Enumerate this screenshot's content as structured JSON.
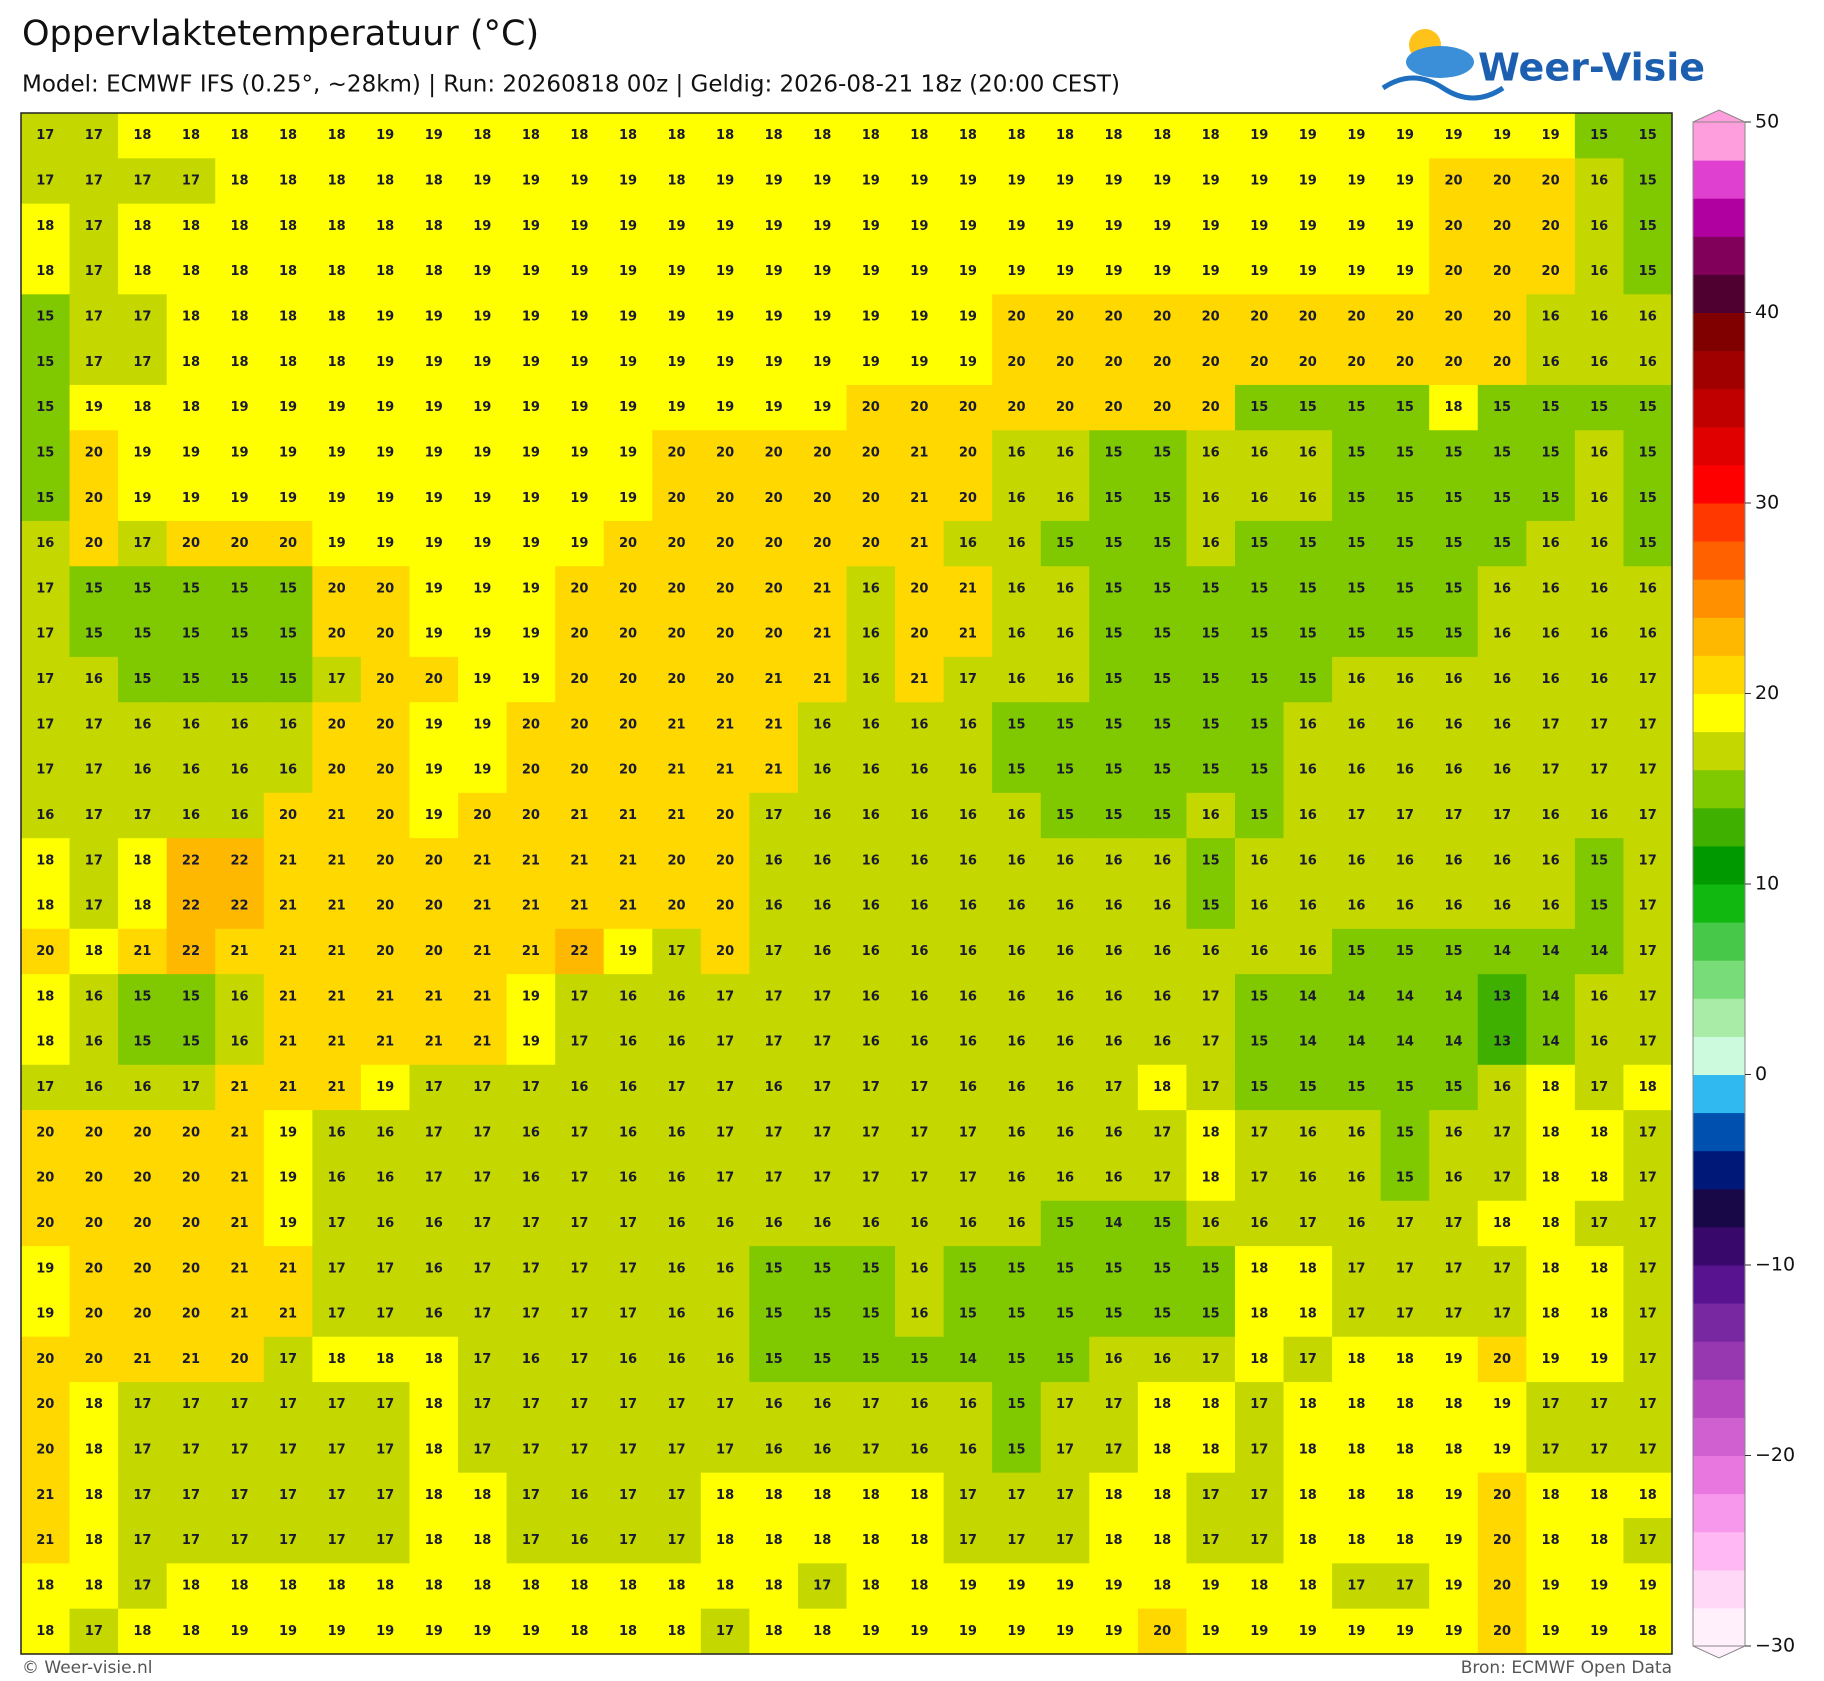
{
  "header": {
    "title": "Oppervlaktetemperatuur (°C)",
    "subtitle": "Model: ECMWF IFS (0.25°, ~28km)  |  Run: 20260818 00z  |  Geldig: 2026-08-21 18z (20:00 CEST)",
    "logo": "Weer-Visie"
  },
  "footer": {
    "credit": "© Weer-visie.nl",
    "source": "Bron: ECMWF Open Data"
  },
  "map": {
    "values": [
      [
        17,
        17,
        18,
        18,
        18,
        18,
        18,
        19,
        19,
        18,
        18,
        18,
        18,
        18,
        18,
        18,
        18,
        18,
        18,
        18,
        18,
        18,
        18,
        18,
        18,
        19,
        19,
        19,
        19,
        19,
        19,
        19,
        15,
        15
      ],
      [
        17,
        17,
        17,
        17,
        18,
        18,
        18,
        18,
        18,
        19,
        19,
        19,
        19,
        18,
        19,
        19,
        19,
        19,
        19,
        19,
        19,
        19,
        19,
        19,
        19,
        19,
        19,
        19,
        19,
        20,
        20,
        20,
        16,
        15
      ],
      [
        18,
        17,
        18,
        18,
        18,
        18,
        18,
        18,
        18,
        19,
        19,
        19,
        19,
        19,
        19,
        19,
        19,
        19,
        19,
        19,
        19,
        19,
        19,
        19,
        19,
        19,
        19,
        19,
        19,
        20,
        20,
        20,
        16,
        15
      ],
      [
        18,
        17,
        18,
        18,
        18,
        18,
        18,
        18,
        18,
        19,
        19,
        19,
        19,
        19,
        19,
        19,
        19,
        19,
        19,
        19,
        19,
        19,
        19,
        19,
        19,
        19,
        19,
        19,
        19,
        20,
        20,
        20,
        16,
        15
      ],
      [
        15,
        17,
        17,
        18,
        18,
        18,
        18,
        19,
        19,
        19,
        19,
        19,
        19,
        19,
        19,
        19,
        19,
        19,
        19,
        19,
        20,
        20,
        20,
        20,
        20,
        20,
        20,
        20,
        20,
        20,
        20,
        16,
        16,
        16
      ],
      [
        15,
        17,
        17,
        18,
        18,
        18,
        18,
        19,
        19,
        19,
        19,
        19,
        19,
        19,
        19,
        19,
        19,
        19,
        19,
        19,
        20,
        20,
        20,
        20,
        20,
        20,
        20,
        20,
        20,
        20,
        20,
        16,
        16,
        16
      ],
      [
        15,
        19,
        18,
        18,
        19,
        19,
        19,
        19,
        19,
        19,
        19,
        19,
        19,
        19,
        19,
        19,
        19,
        20,
        20,
        20,
        20,
        20,
        20,
        20,
        20,
        15,
        15,
        15,
        15,
        18,
        15,
        15,
        15,
        15
      ],
      [
        15,
        20,
        19,
        19,
        19,
        19,
        19,
        19,
        19,
        19,
        19,
        19,
        19,
        20,
        20,
        20,
        20,
        20,
        21,
        20,
        16,
        16,
        15,
        15,
        16,
        16,
        16,
        15,
        15,
        15,
        15,
        15,
        16,
        15
      ],
      [
        15,
        20,
        19,
        19,
        19,
        19,
        19,
        19,
        19,
        19,
        19,
        19,
        19,
        20,
        20,
        20,
        20,
        20,
        21,
        20,
        16,
        16,
        15,
        15,
        16,
        16,
        16,
        15,
        15,
        15,
        15,
        15,
        16,
        15
      ],
      [
        16,
        20,
        17,
        20,
        20,
        20,
        19,
        19,
        19,
        19,
        19,
        19,
        20,
        20,
        20,
        20,
        20,
        20,
        21,
        16,
        16,
        15,
        15,
        15,
        16,
        15,
        15,
        15,
        15,
        15,
        15,
        16,
        16,
        15
      ],
      [
        17,
        15,
        15,
        15,
        15,
        15,
        20,
        20,
        19,
        19,
        19,
        20,
        20,
        20,
        20,
        20,
        21,
        16,
        20,
        21,
        16,
        16,
        15,
        15,
        15,
        15,
        15,
        15,
        15,
        15,
        16,
        16,
        16,
        16
      ],
      [
        17,
        15,
        15,
        15,
        15,
        15,
        20,
        20,
        19,
        19,
        19,
        20,
        20,
        20,
        20,
        20,
        21,
        16,
        20,
        21,
        16,
        16,
        15,
        15,
        15,
        15,
        15,
        15,
        15,
        15,
        16,
        16,
        16,
        16
      ],
      [
        17,
        16,
        15,
        15,
        15,
        15,
        17,
        20,
        20,
        19,
        19,
        20,
        20,
        20,
        20,
        21,
        21,
        16,
        21,
        17,
        16,
        16,
        15,
        15,
        15,
        15,
        15,
        16,
        16,
        16,
        16,
        16,
        16,
        17
      ],
      [
        17,
        17,
        16,
        16,
        16,
        16,
        20,
        20,
        19,
        19,
        20,
        20,
        20,
        21,
        21,
        21,
        16,
        16,
        16,
        16,
        15,
        15,
        15,
        15,
        15,
        15,
        16,
        16,
        16,
        16,
        16,
        17,
        17,
        17
      ],
      [
        17,
        17,
        16,
        16,
        16,
        16,
        20,
        20,
        19,
        19,
        20,
        20,
        20,
        21,
        21,
        21,
        16,
        16,
        16,
        16,
        15,
        15,
        15,
        15,
        15,
        15,
        16,
        16,
        16,
        16,
        16,
        17,
        17,
        17
      ],
      [
        16,
        17,
        17,
        16,
        16,
        20,
        21,
        20,
        19,
        20,
        20,
        21,
        21,
        21,
        20,
        17,
        16,
        16,
        16,
        16,
        16,
        15,
        15,
        15,
        16,
        15,
        16,
        17,
        17,
        17,
        17,
        16,
        16,
        17
      ],
      [
        18,
        17,
        18,
        22,
        22,
        21,
        21,
        20,
        20,
        21,
        21,
        21,
        21,
        20,
        20,
        16,
        16,
        16,
        16,
        16,
        16,
        16,
        16,
        16,
        15,
        16,
        16,
        16,
        16,
        16,
        16,
        16,
        15,
        17
      ],
      [
        18,
        17,
        18,
        22,
        22,
        21,
        21,
        20,
        20,
        21,
        21,
        21,
        21,
        20,
        20,
        16,
        16,
        16,
        16,
        16,
        16,
        16,
        16,
        16,
        15,
        16,
        16,
        16,
        16,
        16,
        16,
        16,
        15,
        17
      ],
      [
        20,
        18,
        21,
        22,
        21,
        21,
        21,
        20,
        20,
        21,
        21,
        22,
        19,
        17,
        20,
        17,
        16,
        16,
        16,
        16,
        16,
        16,
        16,
        16,
        16,
        16,
        16,
        15,
        15,
        15,
        14,
        14,
        14,
        17
      ],
      [
        18,
        16,
        15,
        15,
        16,
        21,
        21,
        21,
        21,
        21,
        19,
        17,
        16,
        16,
        17,
        17,
        17,
        16,
        16,
        16,
        16,
        16,
        16,
        16,
        17,
        15,
        14,
        14,
        14,
        14,
        13,
        14,
        16,
        17
      ],
      [
        18,
        16,
        15,
        15,
        16,
        21,
        21,
        21,
        21,
        21,
        19,
        17,
        16,
        16,
        17,
        17,
        17,
        16,
        16,
        16,
        16,
        16,
        16,
        16,
        17,
        15,
        14,
        14,
        14,
        14,
        13,
        14,
        16,
        17
      ],
      [
        17,
        16,
        16,
        17,
        21,
        21,
        21,
        19,
        17,
        17,
        17,
        16,
        16,
        17,
        17,
        16,
        17,
        17,
        17,
        16,
        16,
        16,
        17,
        18,
        17,
        15,
        15,
        15,
        15,
        15,
        16,
        18,
        17,
        18
      ],
      [
        20,
        20,
        20,
        20,
        21,
        19,
        16,
        16,
        17,
        17,
        16,
        17,
        16,
        16,
        17,
        17,
        17,
        17,
        17,
        17,
        16,
        16,
        16,
        17,
        18,
        17,
        16,
        16,
        15,
        16,
        17,
        18,
        18,
        17
      ],
      [
        20,
        20,
        20,
        20,
        21,
        19,
        16,
        16,
        17,
        17,
        16,
        17,
        16,
        16,
        17,
        17,
        17,
        17,
        17,
        17,
        16,
        16,
        16,
        17,
        18,
        17,
        16,
        16,
        15,
        16,
        17,
        18,
        18,
        17
      ],
      [
        20,
        20,
        20,
        20,
        21,
        19,
        17,
        16,
        16,
        17,
        17,
        17,
        17,
        16,
        16,
        16,
        16,
        16,
        16,
        16,
        16,
        15,
        14,
        15,
        16,
        16,
        17,
        16,
        17,
        17,
        18,
        18,
        17,
        17
      ],
      [
        19,
        20,
        20,
        20,
        21,
        21,
        17,
        17,
        16,
        17,
        17,
        17,
        17,
        16,
        16,
        15,
        15,
        15,
        16,
        15,
        15,
        15,
        15,
        15,
        15,
        18,
        18,
        17,
        17,
        17,
        17,
        18,
        18,
        17
      ],
      [
        19,
        20,
        20,
        20,
        21,
        21,
        17,
        17,
        16,
        17,
        17,
        17,
        17,
        16,
        16,
        15,
        15,
        15,
        16,
        15,
        15,
        15,
        15,
        15,
        15,
        18,
        18,
        17,
        17,
        17,
        17,
        18,
        18,
        17
      ],
      [
        20,
        20,
        21,
        21,
        20,
        17,
        18,
        18,
        18,
        17,
        16,
        17,
        16,
        16,
        16,
        15,
        15,
        15,
        15,
        14,
        15,
        15,
        16,
        16,
        17,
        18,
        17,
        18,
        18,
        19,
        20,
        19,
        19,
        17
      ],
      [
        20,
        18,
        17,
        17,
        17,
        17,
        17,
        17,
        18,
        17,
        17,
        17,
        17,
        17,
        17,
        16,
        16,
        17,
        16,
        16,
        15,
        17,
        17,
        18,
        18,
        17,
        18,
        18,
        18,
        18,
        19,
        17,
        17,
        17
      ],
      [
        20,
        18,
        17,
        17,
        17,
        17,
        17,
        17,
        18,
        17,
        17,
        17,
        17,
        17,
        17,
        16,
        16,
        17,
        16,
        16,
        15,
        17,
        17,
        18,
        18,
        17,
        18,
        18,
        18,
        18,
        19,
        17,
        17,
        17
      ],
      [
        21,
        18,
        17,
        17,
        17,
        17,
        17,
        17,
        18,
        18,
        17,
        16,
        17,
        17,
        18,
        18,
        18,
        18,
        18,
        17,
        17,
        17,
        18,
        18,
        17,
        17,
        18,
        18,
        18,
        19,
        20,
        18,
        18,
        18
      ],
      [
        21,
        18,
        17,
        17,
        17,
        17,
        17,
        17,
        18,
        18,
        17,
        16,
        17,
        17,
        18,
        18,
        18,
        18,
        18,
        17,
        17,
        17,
        18,
        18,
        17,
        17,
        18,
        18,
        18,
        19,
        20,
        18,
        18,
        17
      ],
      [
        18,
        18,
        17,
        18,
        18,
        18,
        18,
        18,
        18,
        18,
        18,
        18,
        18,
        18,
        18,
        18,
        17,
        18,
        18,
        19,
        19,
        19,
        19,
        18,
        19,
        18,
        18,
        17,
        17,
        19,
        20,
        19,
        19,
        19
      ],
      [
        18,
        17,
        18,
        18,
        19,
        19,
        19,
        19,
        19,
        19,
        19,
        18,
        18,
        18,
        17,
        18,
        18,
        19,
        19,
        19,
        19,
        19,
        19,
        20,
        19,
        19,
        19,
        19,
        19,
        19,
        20,
        19,
        19,
        18
      ]
    ]
  },
  "colorbar": {
    "lim": [
      -30,
      50
    ],
    "ticks": [
      50,
      40,
      30,
      20,
      10,
      0,
      {
        "value": -10,
        "label": "−10"
      },
      {
        "value": -20,
        "label": "−20"
      },
      {
        "value": -30,
        "label": "−30"
      }
    ],
    "colors": [
      "#fff0fc",
      "#ffd8f8",
      "#ffb8f4",
      "#f898ec",
      "#e878e0",
      "#d060d0",
      "#b848c0",
      "#9838b0",
      "#7828a0",
      "#581490",
      "#38086a",
      "#180848",
      "#001878",
      "#0050b0",
      "#30b8f0",
      "#ccfadc",
      "#a8eca8",
      "#78dc78",
      "#48c848",
      "#10b810",
      "#009a00",
      "#40b000",
      "#80c800",
      "#c4d800",
      "#ffff00",
      "#ffd800",
      "#ffb800",
      "#ff9000",
      "#ff6000",
      "#ff3800",
      "#ff0000",
      "#e00000",
      "#c00000",
      "#a00000",
      "#800000",
      "#500030",
      "#80005a",
      "#b000a0",
      "#e040d0",
      "#ff9edc"
    ]
  }
}
